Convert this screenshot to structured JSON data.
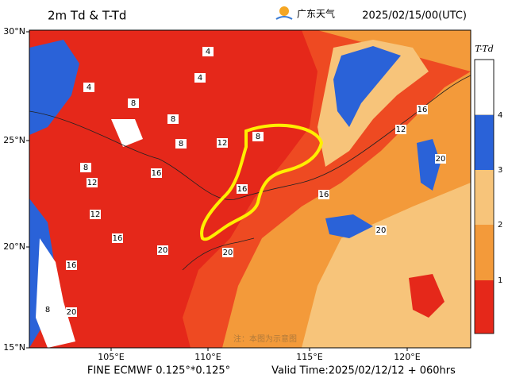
{
  "header": {
    "title": "2m Td & T-Td",
    "logo_text": "广东天气",
    "time": "2025/02/15/00(UTC)"
  },
  "map": {
    "lat_labels": [
      "30°N",
      "25°N",
      "20°N",
      "15°N"
    ],
    "lon_labels": [
      "105°E",
      "110°E",
      "115°E",
      "120°E"
    ],
    "contour_labels": [
      "4",
      "4",
      "4",
      "8",
      "8",
      "8",
      "8",
      "12",
      "12",
      "12",
      "16",
      "16",
      "16",
      "16",
      "16",
      "12",
      "20",
      "20",
      "20",
      "20",
      "8",
      "8",
      "16",
      "20"
    ],
    "watermark": "注：本图为示意图"
  },
  "colorbar": {
    "title": "T-Td",
    "labels": [
      4,
      3,
      2,
      1
    ]
  },
  "footer": {
    "model": "FINE ECMWF 0.125°*0.125°",
    "valid": "Valid Time:2025/02/12/12 + 060hrs"
  }
}
